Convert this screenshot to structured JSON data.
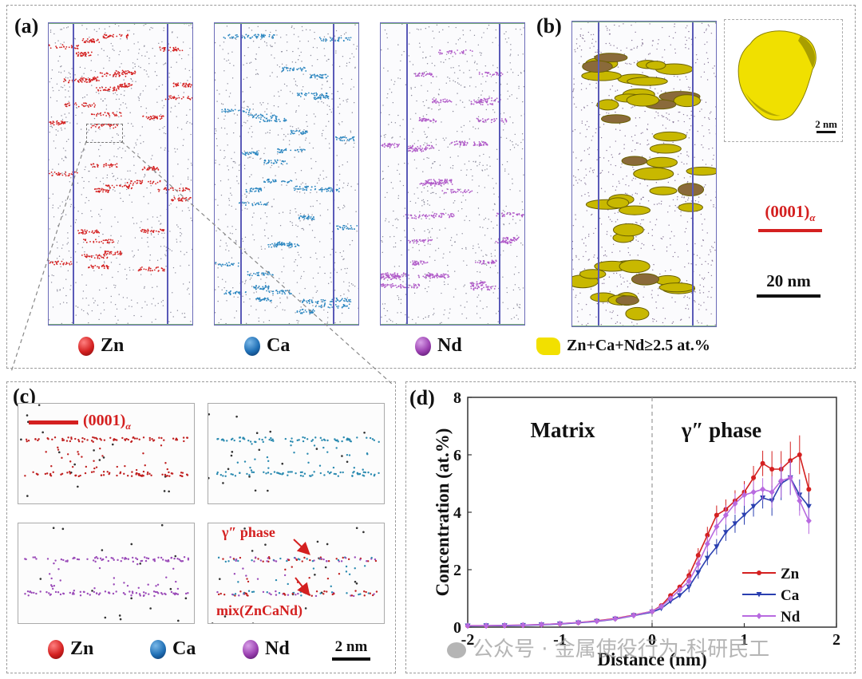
{
  "figure": {
    "panels": {
      "a": {
        "label": "(a)",
        "legend": [
          {
            "element": "Zn",
            "color": "#d42020"
          },
          {
            "element": "Ca",
            "color": "#1f6fb5"
          },
          {
            "element": "Nd",
            "color": "#9a3fb0"
          }
        ]
      },
      "b": {
        "label": "(b)",
        "isosurface_legend": "Zn+Ca+Nd≥2.5 at.%",
        "isosurface_color": "#e6d80a",
        "inset_scale": "2 nm",
        "plane_label": "(0001)",
        "plane_subscript": "α",
        "plane_color": "#d42020",
        "scale": "20 nm"
      },
      "c": {
        "label": "(c)",
        "plane_label": "(0001)",
        "plane_subscript": "α",
        "annotation_phase": "γ″ phase",
        "annotation_mix": "mix(ZnCaNd)",
        "legend": [
          {
            "element": "Zn",
            "color": "#d42020"
          },
          {
            "element": "Ca",
            "color": "#1f6fb5"
          },
          {
            "element": "Nd",
            "color": "#9a3fb0"
          }
        ],
        "scale": "2 nm"
      },
      "d": {
        "label": "(d)"
      }
    },
    "watermark": "公众号 · 金属使役行为-科研民工"
  },
  "chart_data": {
    "type": "line",
    "title": "",
    "xlabel": "Distance (nm)",
    "ylabel": "Concentration (at.%)",
    "xlim": [
      -2,
      2
    ],
    "ylim": [
      0,
      8
    ],
    "xticks": [
      -2,
      -1,
      0,
      1,
      2
    ],
    "yticks": [
      0,
      2,
      4,
      6,
      8
    ],
    "region_labels": [
      {
        "text": "Matrix",
        "x": -1
      },
      {
        "text": "γ″ phase",
        "x": 1
      }
    ],
    "divider_x": 0,
    "legend_position": "lower-right",
    "x": [
      -2.0,
      -1.8,
      -1.6,
      -1.4,
      -1.2,
      -1.0,
      -0.8,
      -0.6,
      -0.4,
      -0.2,
      0.0,
      0.1,
      0.2,
      0.3,
      0.4,
      0.5,
      0.6,
      0.7,
      0.8,
      0.9,
      1.0,
      1.1,
      1.2,
      1.3,
      1.4,
      1.5,
      1.6,
      1.7
    ],
    "series": [
      {
        "name": "Zn",
        "color": "#d42020",
        "marker": "circle",
        "values": [
          0.05,
          0.05,
          0.06,
          0.07,
          0.09,
          0.12,
          0.16,
          0.22,
          0.3,
          0.42,
          0.55,
          0.75,
          1.1,
          1.4,
          1.8,
          2.5,
          3.2,
          3.9,
          4.1,
          4.4,
          4.7,
          5.2,
          5.7,
          5.5,
          5.5,
          5.8,
          6.0,
          4.8
        ]
      },
      {
        "name": "Ca",
        "color": "#2a3fb0",
        "marker": "triangle-down",
        "values": [
          0.04,
          0.05,
          0.05,
          0.06,
          0.08,
          0.11,
          0.15,
          0.2,
          0.28,
          0.4,
          0.52,
          0.65,
          0.9,
          1.1,
          1.4,
          1.9,
          2.4,
          2.8,
          3.3,
          3.6,
          3.9,
          4.2,
          4.5,
          4.4,
          5.0,
          5.2,
          4.6,
          4.2
        ]
      },
      {
        "name": "Nd",
        "color": "#b86ae0",
        "marker": "diamond",
        "values": [
          0.05,
          0.05,
          0.06,
          0.07,
          0.09,
          0.12,
          0.16,
          0.21,
          0.29,
          0.41,
          0.55,
          0.72,
          1.0,
          1.3,
          1.6,
          2.2,
          2.9,
          3.5,
          3.9,
          4.3,
          4.6,
          4.7,
          4.8,
          4.7,
          5.1,
          5.2,
          4.4,
          3.7
        ]
      }
    ]
  }
}
